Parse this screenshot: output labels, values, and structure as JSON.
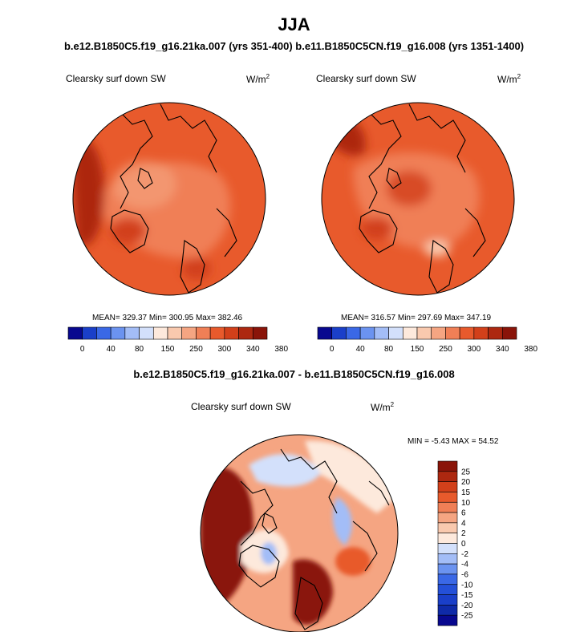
{
  "header": {
    "title": "JJA",
    "runs_title": "b.e12.B1850C5.f19_g16.21ka.007 (yrs 351-400) b.e11.B1850C5CN.f19_g16.008 (yrs 1351-1400)",
    "diff_title": "b.e12.B1850C5.f19_g16.21ka.007 - b.e11.B1850C5CN.f19_g16.008"
  },
  "units": {
    "base": "W/m",
    "exp": "2"
  },
  "chart_data": [
    {
      "type": "heatmap",
      "projection": "north-polar-stereographic",
      "title": "Clearsky surf down SW",
      "units": "W/m2",
      "stats": {
        "mean": 329.37,
        "min": 300.95,
        "max": 382.46
      },
      "stats_text": "MEAN= 329.37  Min= 300.95  Max= 382.46",
      "colorbar": {
        "orientation": "horizontal",
        "levels": [
          0,
          40,
          80,
          150,
          250,
          300,
          340,
          380
        ],
        "tick_labels": [
          "0",
          "40",
          "80",
          "150",
          "250",
          "300",
          "340",
          "380"
        ],
        "colors": [
          "#08088f",
          "#1a3fc9",
          "#3a68e6",
          "#6b93f0",
          "#a3bdf7",
          "#d3e0fb",
          "#fde9dc",
          "#f9c9ae",
          "#f5a582",
          "#f07f56",
          "#e85a2c",
          "#d2401a",
          "#ad2810",
          "#8a1409"
        ]
      }
    },
    {
      "type": "heatmap",
      "projection": "north-polar-stereographic",
      "title": "Clearsky surf down SW",
      "units": "W/m2",
      "stats": {
        "mean": 316.57,
        "min": 297.69,
        "max": 347.19
      },
      "stats_text": "MEAN= 316.57  Min= 297.69  Max= 347.19",
      "colorbar": {
        "orientation": "horizontal",
        "levels": [
          0,
          40,
          80,
          150,
          250,
          300,
          340,
          380
        ],
        "tick_labels": [
          "0",
          "40",
          "80",
          "150",
          "250",
          "300",
          "340",
          "380"
        ],
        "colors": [
          "#08088f",
          "#1a3fc9",
          "#3a68e6",
          "#6b93f0",
          "#a3bdf7",
          "#d3e0fb",
          "#fde9dc",
          "#f9c9ae",
          "#f5a582",
          "#f07f56",
          "#e85a2c",
          "#d2401a",
          "#ad2810",
          "#8a1409"
        ]
      }
    },
    {
      "type": "heatmap",
      "projection": "north-polar-stereographic",
      "title": "Clearsky surf down SW",
      "units": "W/m2",
      "stats": {
        "min": -5.43,
        "max": 54.52
      },
      "stats_text": "MIN =  -5.43 MAX =  54.52",
      "colorbar": {
        "orientation": "vertical",
        "levels": [
          25,
          20,
          15,
          10,
          6,
          4,
          2,
          0,
          -2,
          -4,
          -6,
          -10,
          -15,
          -20,
          -25
        ],
        "tick_labels": [
          "25",
          "20",
          "15",
          "10",
          "6",
          "4",
          "2",
          "0",
          "-2",
          "-4",
          "-6",
          "-10",
          "-15",
          "-20",
          "-25"
        ],
        "colors": [
          "#8a1409",
          "#ad2810",
          "#d2401a",
          "#e85a2c",
          "#f07f56",
          "#f5a582",
          "#f9c9ae",
          "#fde9dc",
          "#d3e0fb",
          "#a3bdf7",
          "#6b93f0",
          "#3a68e6",
          "#2450d8",
          "#1a3fc9",
          "#0f2aa8",
          "#08088f"
        ]
      }
    }
  ]
}
